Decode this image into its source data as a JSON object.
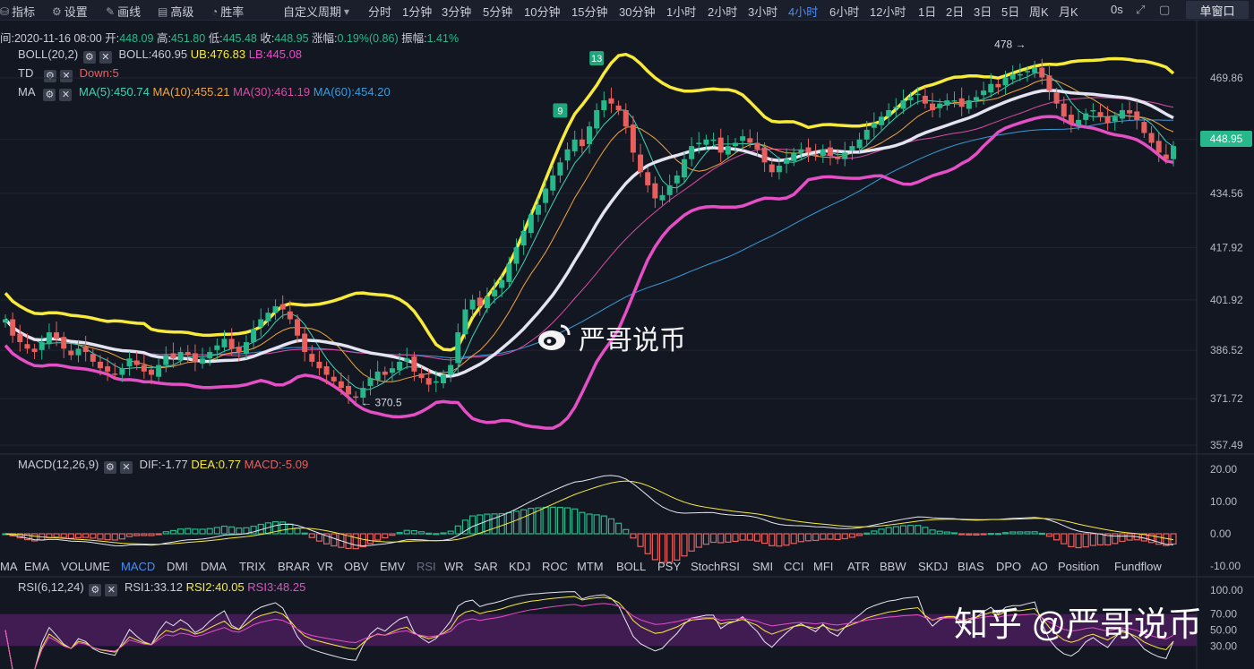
{
  "toolbar": {
    "left_items": [
      {
        "label": "指标",
        "icon": "indicator-icon"
      },
      {
        "label": "设置",
        "icon": "gear-icon"
      },
      {
        "label": "画线",
        "icon": "pencil-icon"
      },
      {
        "label": "高级",
        "icon": "calendar-icon"
      },
      {
        "label": "胜率",
        "icon": "chart-icon"
      }
    ],
    "custom_period": "自定义周期",
    "periods": [
      "分时",
      "1分钟",
      "3分钟",
      "5分钟",
      "10分钟",
      "15分钟",
      "30分钟",
      "1小时",
      "2小时",
      "3小时",
      "4小时",
      "6小时",
      "12小时",
      "1日",
      "2日",
      "3日",
      "5日",
      "周K",
      "月K"
    ],
    "active_period": "4小时",
    "countdown": "0s",
    "single_window": "单窗口"
  },
  "ohlc_info": {
    "time": "间:2020-11-16 08:00",
    "open_label": "开:",
    "open": "448.09",
    "high_label": "高:",
    "high": "451.80",
    "low_label": "低:",
    "low": "445.48",
    "close_label": "收:",
    "close": "448.95",
    "change_label": "涨幅:",
    "change": "0.19%(0.86)",
    "amplitude_label": "振幅:",
    "amplitude": "1.41%"
  },
  "indicators": {
    "boll": {
      "name": "BOLL(20,2)",
      "mid": "BOLL:460.95",
      "ub": "UB:476.83",
      "lb": "LB:445.08"
    },
    "td": {
      "name": "TD",
      "value": "Down:5"
    },
    "ma": {
      "name": "MA",
      "ma5": "MA(5):450.74",
      "ma10": "MA(10):455.21",
      "ma30": "MA(30):461.19",
      "ma60": "MA(60):454.20"
    },
    "macd": {
      "name": "MACD(12,26,9)",
      "dif": "DIF:-1.77",
      "dea": "DEA:0.77",
      "macd": "MACD:-5.09"
    },
    "rsi": {
      "name": "RSI(6,12,24)",
      "rsi1": "RSI1:33.12",
      "rsi2": "RSI2:40.05",
      "rsi3": "RSI3:48.25"
    }
  },
  "indicator_tabs": [
    "MA",
    "EMA",
    "VOLUME",
    "MACD",
    "DMI",
    "DMA",
    "TRIX",
    "BRAR",
    "VR",
    "OBV",
    "EMV",
    "RSI",
    "WR",
    "SAR",
    "KDJ",
    "ROC",
    "MTM",
    "BOLL",
    "PSY",
    "StochRSI",
    "SMI",
    "CCI",
    "MFI",
    "ATR",
    "BBW",
    "SKDJ",
    "BIAS",
    "DPO",
    "AO",
    "Position",
    "Fundflow"
  ],
  "active_tab": "MACD",
  "dimmed_tab": "RSI",
  "watermarks": {
    "center": "严哥说币",
    "bottom": "知乎 @严哥说币"
  },
  "chart_data": {
    "type": "candlestick",
    "price_axis": {
      "ticks": [
        469.86,
        451.06,
        434.56,
        417.92,
        401.92,
        386.52,
        371.72,
        357.49
      ],
      "labels": [
        "469.86",
        "451.06",
        "434.56",
        "417.92",
        "401.92",
        "386.52",
        "371.72",
        "357.49"
      ]
    },
    "current_price": "448.95",
    "annotations": [
      {
        "text": "478 →",
        "type": "high"
      },
      {
        "text": "← 370.5",
        "type": "low"
      },
      {
        "text": "9",
        "type": "td"
      },
      {
        "text": "13",
        "type": "td"
      }
    ],
    "macd_axis": {
      "ticks": [
        20,
        10,
        0,
        -10
      ],
      "labels": [
        "20.00",
        "10.00",
        "0.00",
        "-10.00"
      ]
    },
    "rsi_axis": {
      "ticks": [
        100,
        70,
        50,
        30
      ],
      "labels": [
        "100.00",
        "70.00",
        "50.00",
        "30.00"
      ]
    },
    "colors": {
      "up": "#26b88a",
      "down": "#e8605e",
      "ub": "#f7ea3b",
      "lb": "#e54fc6",
      "boll_mid": "#e3e3f2",
      "ma5": "#3dd3b4",
      "ma10": "#f2a53b",
      "ma30": "#d94ca5",
      "ma60": "#3a9bd9"
    },
    "closes": [
      396,
      391,
      389,
      387,
      386,
      389,
      392,
      390,
      387,
      385,
      387,
      386,
      383,
      381,
      380,
      379,
      381,
      384,
      382,
      380,
      379,
      382,
      385,
      384,
      386,
      385,
      383,
      384,
      386,
      388,
      390,
      387,
      386,
      389,
      393,
      396,
      398,
      400,
      399,
      396,
      391,
      386,
      383,
      381,
      379,
      377,
      375,
      373,
      372,
      375,
      378,
      380,
      379,
      381,
      383,
      384,
      380,
      378,
      376,
      377,
      379,
      382,
      392,
      399,
      402,
      400,
      403,
      405,
      408,
      413,
      418,
      423,
      428,
      431,
      436,
      440,
      444,
      448,
      451,
      449,
      455,
      460,
      463,
      462,
      460,
      455,
      447,
      441,
      437,
      433,
      434,
      437,
      440,
      445,
      449,
      450,
      451,
      451,
      447,
      449,
      450,
      452,
      450,
      448,
      444,
      441,
      443,
      445,
      447,
      448,
      447,
      446,
      448,
      446,
      445,
      447,
      449,
      451,
      454,
      456,
      458,
      460,
      461,
      463,
      464,
      465,
      462,
      460,
      462,
      463,
      463,
      461,
      463,
      464,
      466,
      468,
      467,
      470,
      471,
      471,
      472,
      473,
      470,
      466,
      462,
      458,
      456,
      457,
      459,
      460,
      458,
      456,
      458,
      460,
      459,
      457,
      453,
      450,
      447,
      445,
      449
    ]
  }
}
